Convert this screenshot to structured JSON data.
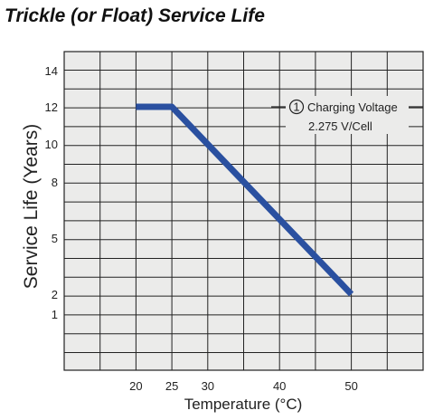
{
  "chart_data": {
    "type": "line",
    "title": "Trickle (or Float) Service Life",
    "xlabel": "Temperature (°C)",
    "ylabel": "Service Life (Years)",
    "x_ticks": [
      20,
      25,
      30,
      40,
      50
    ],
    "y_ticks": [
      1,
      2,
      5,
      8,
      10,
      12,
      14
    ],
    "xlim": [
      10,
      60
    ],
    "grid": true,
    "colors": {
      "line": "#2a50a0",
      "plot_bg": "#ebebea",
      "grid": "#222222"
    },
    "series": [
      {
        "name": "",
        "x": [
          20,
          25,
          50
        ],
        "y": [
          12,
          12,
          2
        ]
      }
    ],
    "annotation": {
      "marker": "1",
      "line1": "Charging Voltage",
      "line2": "2.275 V/Cell",
      "placement": "top-right"
    }
  }
}
